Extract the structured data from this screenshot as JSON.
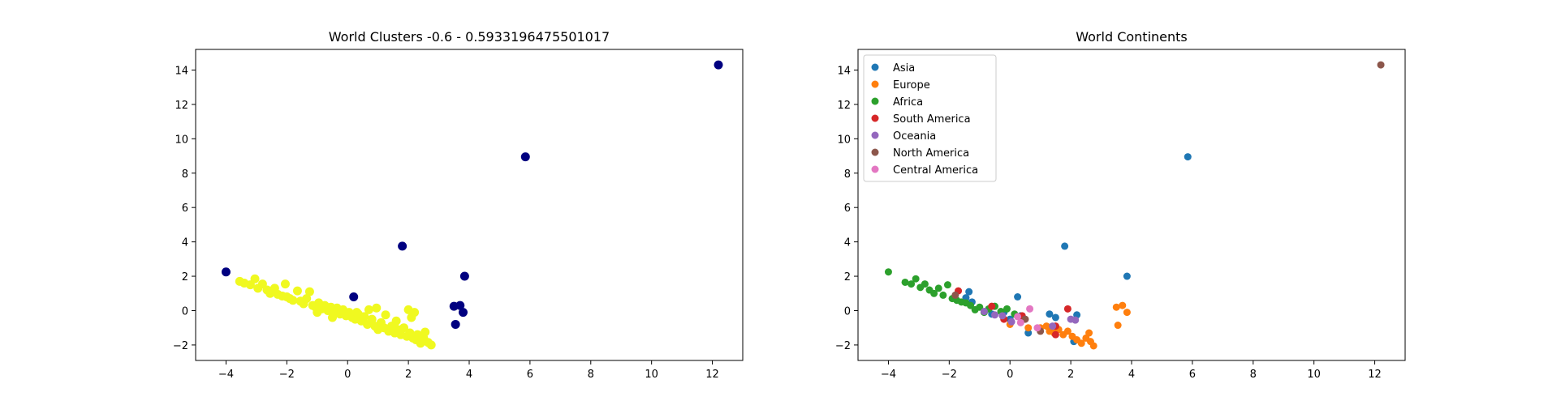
{
  "chart_data": [
    {
      "type": "scatter",
      "title": "World Clusters -0.6 - 0.5933196475501017",
      "xlabel": "",
      "ylabel": "",
      "xlim": [
        -5,
        13
      ],
      "ylim": [
        -2.9,
        15.2
      ],
      "xticks": [
        -4,
        -2,
        0,
        2,
        4,
        6,
        8,
        10,
        12
      ],
      "yticks": [
        -2,
        0,
        2,
        4,
        6,
        8,
        10,
        12,
        14
      ],
      "grid": false,
      "legend": "none",
      "series": [
        {
          "color": "#000080",
          "points": [
            [
              -4.0,
              2.25
            ],
            [
              0.2,
              0.8
            ],
            [
              1.8,
              3.75
            ],
            [
              3.5,
              0.25
            ],
            [
              3.7,
              0.3
            ],
            [
              3.85,
              2.0
            ],
            [
              3.55,
              -0.8
            ],
            [
              3.8,
              -0.1
            ],
            [
              5.85,
              8.95
            ],
            [
              12.2,
              14.3
            ]
          ]
        },
        {
          "color": "#f0f920",
          "points": [
            [
              -3.55,
              1.7
            ],
            [
              -3.4,
              1.6
            ],
            [
              -3.2,
              1.5
            ],
            [
              -3.05,
              1.85
            ],
            [
              -2.95,
              1.3
            ],
            [
              -2.8,
              1.55
            ],
            [
              -2.65,
              1.2
            ],
            [
              -2.55,
              1.0
            ],
            [
              -2.4,
              1.3
            ],
            [
              -2.3,
              0.95
            ],
            [
              -2.15,
              0.85
            ],
            [
              -2.05,
              1.55
            ],
            [
              -1.9,
              0.7
            ],
            [
              -1.8,
              0.6
            ],
            [
              -1.65,
              1.15
            ],
            [
              -1.55,
              0.55
            ],
            [
              -1.45,
              0.4
            ],
            [
              -1.35,
              0.7
            ],
            [
              -1.25,
              1.1
            ],
            [
              -1.15,
              0.3
            ],
            [
              -1.05,
              0.2
            ],
            [
              -0.95,
              0.45
            ],
            [
              -0.85,
              0.1
            ],
            [
              -0.75,
              0.3
            ],
            [
              -0.65,
              0.0
            ],
            [
              -0.55,
              0.2
            ],
            [
              -0.45,
              -0.1
            ],
            [
              -0.35,
              0.15
            ],
            [
              -0.25,
              -0.2
            ],
            [
              -0.15,
              0.05
            ],
            [
              -0.05,
              -0.3
            ],
            [
              0.05,
              -0.1
            ],
            [
              0.15,
              -0.4
            ],
            [
              0.25,
              -0.5
            ],
            [
              0.35,
              -0.2
            ],
            [
              0.45,
              -0.6
            ],
            [
              0.55,
              -0.35
            ],
            [
              0.65,
              -0.8
            ],
            [
              0.7,
              0.05
            ],
            [
              0.8,
              -0.5
            ],
            [
              0.9,
              -0.9
            ],
            [
              1.0,
              -1.1
            ],
            [
              1.1,
              -0.7
            ],
            [
              1.2,
              -1.0
            ],
            [
              1.25,
              -0.25
            ],
            [
              1.35,
              -1.2
            ],
            [
              1.45,
              -0.9
            ],
            [
              1.55,
              -1.3
            ],
            [
              1.65,
              -1.1
            ],
            [
              1.75,
              -1.4
            ],
            [
              1.85,
              -1.0
            ],
            [
              1.95,
              -1.5
            ],
            [
              2.0,
              0.05
            ],
            [
              2.05,
              -1.3
            ],
            [
              2.1,
              -0.4
            ],
            [
              2.15,
              -1.6
            ],
            [
              2.2,
              -0.1
            ],
            [
              2.25,
              -1.7
            ],
            [
              2.3,
              -1.4
            ],
            [
              2.4,
              -1.9
            ],
            [
              2.5,
              -1.6
            ],
            [
              2.55,
              -1.25
            ],
            [
              2.65,
              -1.85
            ],
            [
              2.75,
              -2.0
            ],
            [
              0.95,
              0.15
            ],
            [
              -0.5,
              -0.4
            ],
            [
              0.3,
              -0.1
            ],
            [
              -2.0,
              0.8
            ],
            [
              1.6,
              -0.6
            ],
            [
              -1.0,
              -0.1
            ]
          ]
        }
      ]
    },
    {
      "type": "scatter",
      "title": "World Continents",
      "xlabel": "",
      "ylabel": "",
      "xlim": [
        -5,
        13
      ],
      "ylim": [
        -2.9,
        15.2
      ],
      "xticks": [
        -4,
        -2,
        0,
        2,
        4,
        6,
        8,
        10,
        12
      ],
      "yticks": [
        -2,
        0,
        2,
        4,
        6,
        8,
        10,
        12,
        14
      ],
      "grid": false,
      "legend": "top-left",
      "series": [
        {
          "name": "Asia",
          "color": "#1f77b4",
          "points": [
            [
              1.8,
              3.75
            ],
            [
              5.85,
              8.95
            ],
            [
              3.85,
              2.0
            ],
            [
              -1.45,
              0.75
            ],
            [
              -1.35,
              1.1
            ],
            [
              -1.25,
              0.5
            ],
            [
              -0.2,
              -0.1
            ],
            [
              0.25,
              0.8
            ],
            [
              0.35,
              -0.3
            ],
            [
              0.6,
              -1.3
            ],
            [
              1.3,
              -0.2
            ],
            [
              1.5,
              -0.4
            ],
            [
              2.2,
              -0.25
            ],
            [
              2.1,
              -1.8
            ],
            [
              0.0,
              -0.5
            ],
            [
              -0.6,
              -0.2
            ]
          ]
        },
        {
          "name": "Europe",
          "color": "#ff7f0e",
          "points": [
            [
              3.5,
              0.2
            ],
            [
              3.7,
              0.3
            ],
            [
              3.85,
              -0.1
            ],
            [
              3.55,
              -0.85
            ],
            [
              1.3,
              -1.2
            ],
            [
              1.45,
              -1.3
            ],
            [
              1.6,
              -1.1
            ],
            [
              1.75,
              -1.4
            ],
            [
              1.9,
              -1.2
            ],
            [
              2.05,
              -1.5
            ],
            [
              2.2,
              -1.7
            ],
            [
              2.35,
              -1.9
            ],
            [
              2.5,
              -1.6
            ],
            [
              2.6,
              -1.3
            ],
            [
              2.65,
              -1.8
            ],
            [
              2.75,
              -2.05
            ],
            [
              0.0,
              -0.8
            ],
            [
              0.6,
              -1.0
            ],
            [
              1.0,
              -1.0
            ],
            [
              1.2,
              -0.9
            ]
          ]
        },
        {
          "name": "Africa",
          "color": "#2ca02c",
          "points": [
            [
              -4.0,
              2.25
            ],
            [
              -3.45,
              1.65
            ],
            [
              -3.25,
              1.55
            ],
            [
              -3.1,
              1.85
            ],
            [
              -2.95,
              1.35
            ],
            [
              -2.8,
              1.55
            ],
            [
              -2.65,
              1.2
            ],
            [
              -2.5,
              1.0
            ],
            [
              -2.35,
              1.3
            ],
            [
              -2.2,
              0.9
            ],
            [
              -2.05,
              1.5
            ],
            [
              -1.9,
              0.7
            ],
            [
              -1.75,
              0.6
            ],
            [
              -1.6,
              0.5
            ],
            [
              -1.45,
              0.45
            ],
            [
              -1.3,
              0.3
            ],
            [
              -1.15,
              0.05
            ],
            [
              -1.0,
              0.2
            ],
            [
              -0.85,
              -0.1
            ],
            [
              -0.7,
              0.1
            ],
            [
              -0.5,
              0.25
            ],
            [
              -0.3,
              -0.05
            ],
            [
              -0.1,
              0.1
            ],
            [
              0.15,
              -0.2
            ]
          ]
        },
        {
          "name": "South America",
          "color": "#d62728",
          "points": [
            [
              -1.7,
              1.15
            ],
            [
              -0.6,
              0.25
            ],
            [
              0.4,
              -0.3
            ],
            [
              1.5,
              -0.9
            ],
            [
              1.9,
              0.1
            ],
            [
              1.5,
              -1.4
            ],
            [
              -0.2,
              -0.5
            ]
          ]
        },
        {
          "name": "Oceania",
          "color": "#9467bd",
          "points": [
            [
              -0.85,
              -0.05
            ],
            [
              -0.5,
              -0.25
            ],
            [
              0.05,
              -0.65
            ],
            [
              1.4,
              -0.9
            ],
            [
              2.0,
              -0.5
            ],
            [
              2.15,
              -0.55
            ],
            [
              -0.25,
              -0.3
            ]
          ]
        },
        {
          "name": "North America",
          "color": "#8c564b",
          "points": [
            [
              12.2,
              14.3
            ],
            [
              0.5,
              -0.5
            ],
            [
              1.0,
              -1.2
            ],
            [
              -1.8,
              0.9
            ]
          ]
        },
        {
          "name": "Central America",
          "color": "#e377c2",
          "points": [
            [
              0.65,
              0.1
            ],
            [
              0.35,
              -0.7
            ],
            [
              0.9,
              -1.0
            ],
            [
              0.25,
              -0.35
            ]
          ]
        }
      ]
    }
  ]
}
